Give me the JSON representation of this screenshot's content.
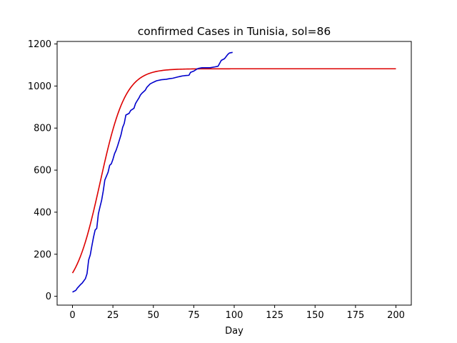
{
  "chart_data": {
    "type": "line",
    "title": "confirmed Cases in Tunisia, sol=86",
    "xlabel": "Day",
    "ylabel": "",
    "xlim": [
      -9.5,
      209.5
    ],
    "ylim": [
      -42,
      1212
    ],
    "xticks": [
      0,
      25,
      50,
      75,
      100,
      125,
      150,
      175,
      200
    ],
    "yticks": [
      0,
      200,
      400,
      600,
      800,
      1000,
      1200
    ],
    "grid": false,
    "legend": "none",
    "series": [
      {
        "color": "#0000cc",
        "points": [
          [
            0,
            20
          ],
          [
            2,
            28
          ],
          [
            3,
            39
          ],
          [
            5,
            56
          ],
          [
            6,
            63
          ],
          [
            8,
            84
          ],
          [
            9,
            108
          ],
          [
            10,
            173
          ],
          [
            11,
            197
          ],
          [
            12,
            240
          ],
          [
            13,
            281
          ],
          [
            14,
            315
          ],
          [
            15,
            323
          ],
          [
            16,
            392
          ],
          [
            17,
            425
          ],
          [
            18,
            456
          ],
          [
            19,
            500
          ],
          [
            20,
            553
          ],
          [
            22,
            590
          ],
          [
            23,
            623
          ],
          [
            24,
            630
          ],
          [
            25,
            651
          ],
          [
            26,
            678
          ],
          [
            27,
            695
          ],
          [
            28,
            718
          ],
          [
            30,
            768
          ],
          [
            31,
            803
          ],
          [
            32,
            822
          ],
          [
            33,
            862
          ],
          [
            35,
            870
          ],
          [
            36,
            884
          ],
          [
            38,
            894
          ],
          [
            39,
            917
          ],
          [
            40,
            930
          ],
          [
            41,
            942
          ],
          [
            42,
            957
          ],
          [
            43,
            966
          ],
          [
            45,
            980
          ],
          [
            46,
            994
          ],
          [
            48,
            1010
          ],
          [
            50,
            1018
          ],
          [
            52,
            1025
          ],
          [
            55,
            1030
          ],
          [
            58,
            1032
          ],
          [
            60,
            1035
          ],
          [
            62,
            1037
          ],
          [
            65,
            1043
          ],
          [
            68,
            1048
          ],
          [
            70,
            1050
          ],
          [
            72,
            1051
          ],
          [
            73,
            1065
          ],
          [
            75,
            1071
          ],
          [
            77,
            1081
          ],
          [
            78,
            1084
          ],
          [
            80,
            1087
          ],
          [
            85,
            1087
          ],
          [
            88,
            1091
          ],
          [
            90,
            1094
          ],
          [
            92,
            1122
          ],
          [
            94,
            1130
          ],
          [
            96,
            1150
          ],
          [
            97,
            1157
          ],
          [
            99,
            1160
          ]
        ]
      },
      {
        "color": "#dd0000",
        "model": "logistic",
        "K": 1082,
        "r": 0.1273,
        "x0": 17.07,
        "x_range": [
          0,
          200
        ]
      }
    ]
  }
}
